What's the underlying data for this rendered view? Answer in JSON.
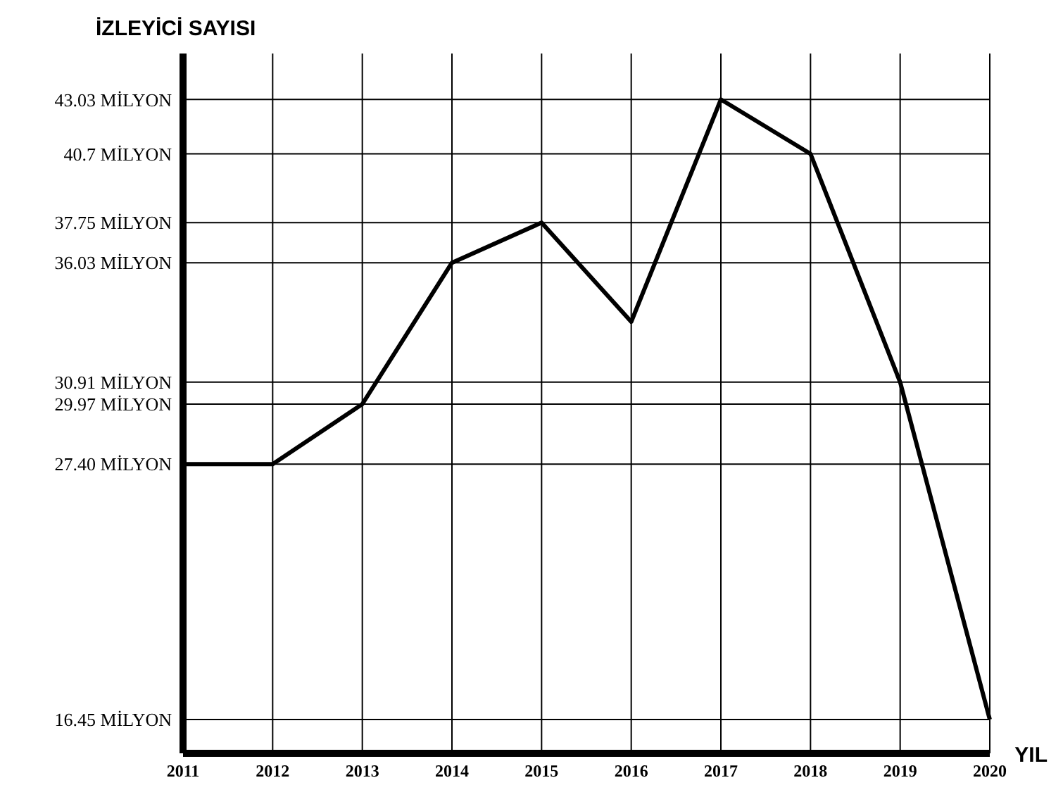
{
  "chart_data": {
    "type": "line",
    "ylabel": "İZLEYİCİ SAYISI",
    "xlabel": "YIL",
    "categories": [
      "2011",
      "2012",
      "2013",
      "2014",
      "2015",
      "2016",
      "2017",
      "2018",
      "2019",
      "2020"
    ],
    "series": [
      {
        "color": "#000000",
        "values": [
          27.4,
          27.4,
          29.97,
          36.03,
          37.75,
          33.5,
          43.03,
          40.7,
          30.91,
          16.45
        ]
      }
    ],
    "ylim": [
      15,
      45
    ],
    "yticks": [
      {
        "value": 16.45,
        "label": "16.45 MİLYON"
      },
      {
        "value": 27.4,
        "label": "27.40 MİLYON"
      },
      {
        "value": 29.97,
        "label": "29.97 MİLYON"
      },
      {
        "value": 30.91,
        "label": "30.91 MİLYON"
      },
      {
        "value": 36.03,
        "label": "36.03 MİLYON"
      },
      {
        "value": 37.75,
        "label": "37.75 MİLYON"
      },
      {
        "value": 40.7,
        "label": "40.7 MİLYON"
      },
      {
        "value": 43.03,
        "label": "43.03 MİLYON"
      }
    ],
    "grid": true,
    "legend": false,
    "marker": "none",
    "line_style": "solid"
  }
}
